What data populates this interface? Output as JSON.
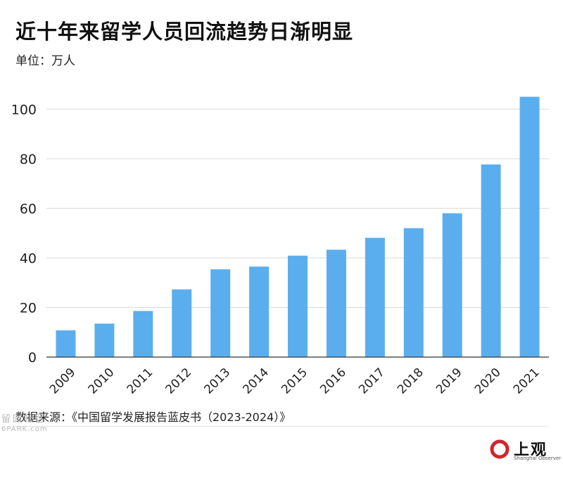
{
  "title": "近十年来留学人员回流趋势日渐明显",
  "unit_label": "单位：万人",
  "source": "数据来源：《中国留学发展报告蓝皮书（2023-2024）》",
  "watermark": {
    "cn": "留园社区",
    "en": "6PARK.com"
  },
  "brand": {
    "name_cn": "上观",
    "name_en": "Shanghai Observer",
    "logo_color": "#d0262a"
  },
  "colors": {
    "bar": "#5baeee",
    "grid": "#d9d9d9",
    "axis": "#333333"
  },
  "chart_data": {
    "type": "bar",
    "title": "近十年来留学人员回流趋势日渐明显",
    "ylabel": "单位：万人",
    "xlabel": "",
    "categories": [
      "2009",
      "2010",
      "2011",
      "2012",
      "2013",
      "2014",
      "2015",
      "2016",
      "2017",
      "2018",
      "2019",
      "2020",
      "2021"
    ],
    "values": [
      10.8,
      13.5,
      18.6,
      27.3,
      35.4,
      36.5,
      40.9,
      43.3,
      48.1,
      52.0,
      58.0,
      77.7,
      105.0
    ],
    "ylim": [
      0,
      110
    ],
    "yticks": [
      0,
      20,
      40,
      60,
      80,
      100
    ],
    "grid": true
  }
}
